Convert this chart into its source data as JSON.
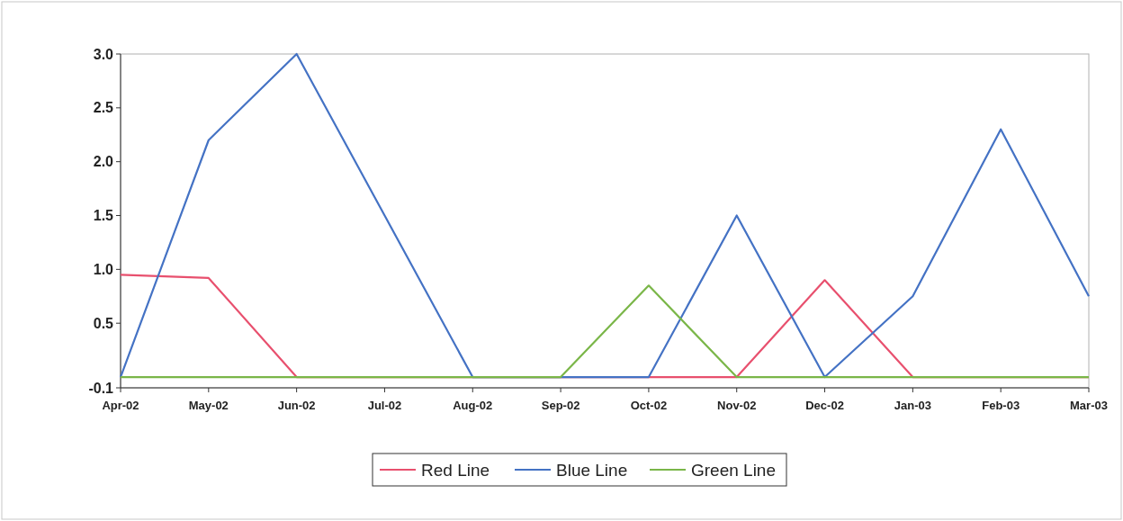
{
  "chart_data": {
    "type": "line",
    "categories": [
      "Apr-02",
      "May-02",
      "Jun-02",
      "Jul-02",
      "Aug-02",
      "Sep-02",
      "Oct-02",
      "Nov-02",
      "Dec-02",
      "Jan-03",
      "Feb-03",
      "Mar-03"
    ],
    "series": [
      {
        "name": "Red Line",
        "color": "#e8506e",
        "values": [
          0.95,
          0.92,
          0,
          0,
          0,
          0,
          0,
          0,
          0.9,
          0,
          0,
          0
        ]
      },
      {
        "name": "Blue Line",
        "color": "#4472c4",
        "values": [
          0,
          2.2,
          3.0,
          1.5,
          0,
          0,
          0,
          1.5,
          0,
          0.75,
          2.3,
          0.75
        ]
      },
      {
        "name": "Green Line",
        "color": "#7ab648",
        "values": [
          0,
          0,
          0,
          0,
          0,
          0,
          0.85,
          0,
          0,
          0,
          0,
          0
        ]
      }
    ],
    "ylim": [
      -0.1,
      3.0
    ],
    "yticks": [
      {
        "value": -0.1,
        "label": "-0.1"
      },
      0.5,
      {
        "value": 1,
        "label": "1.0"
      },
      1.5,
      {
        "value": 2,
        "label": "2.0"
      },
      2.5,
      {
        "value": 3,
        "label": "3.0"
      }
    ],
    "grid": false,
    "legend": "bottom",
    "line_style": "solid"
  }
}
